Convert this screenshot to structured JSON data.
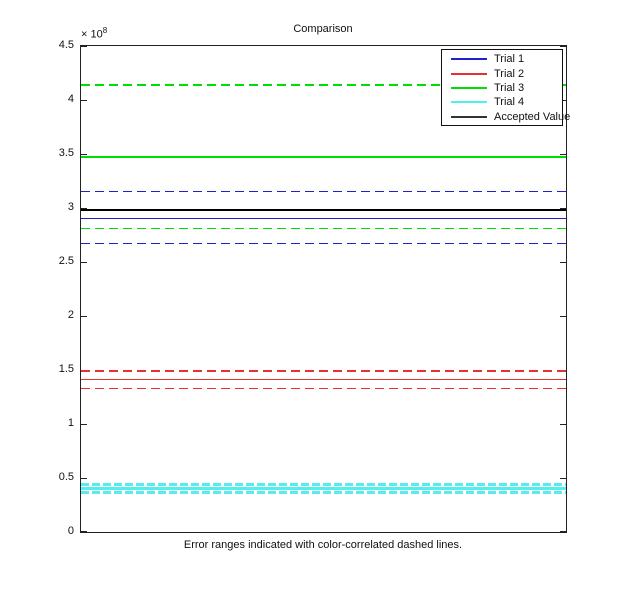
{
  "figure": {
    "title": "Comparison",
    "xlabel": "Error ranges indicated with color-correlated dashed lines.",
    "y_exponent": {
      "prefix": "× 10",
      "power": "8"
    },
    "y_ticks": [
      "0",
      "0.5",
      "1",
      "1.5",
      "2",
      "2.5",
      "3",
      "3.5",
      "4",
      "4.5"
    ]
  },
  "legend": {
    "entries": [
      {
        "label": "Trial 1",
        "color": "#2020CC"
      },
      {
        "label": "Trial 2",
        "color": "#E83030"
      },
      {
        "label": "Trial 3",
        "color": "#00DD00"
      },
      {
        "label": "Trial 4",
        "color": "#55EEEE"
      },
      {
        "label": "Accepted Value",
        "color": "#333333"
      }
    ]
  },
  "chart_data": {
    "type": "line",
    "title": "Comparison",
    "xlabel": "Error ranges indicated with color-correlated dashed lines.",
    "ylabel": "",
    "ylim": [
      0,
      450000000
    ],
    "y_tick_step": 50000000,
    "y_scale_note": "y axis in units of 1e8 (× 10^8)",
    "grid": false,
    "legend_position": "upper right",
    "legend_entries": [
      "Trial 1",
      "Trial 2",
      "Trial 3",
      "Trial 4",
      "Accepted Value"
    ],
    "series": [
      {
        "name": "Trial 1",
        "value": 290000000,
        "lower": 267000000,
        "upper": 315000000,
        "color": "#2020CC",
        "width": 1.4,
        "dash": [
          9,
          5
        ],
        "style": "solid value line, dashed error-range lines"
      },
      {
        "name": "Trial 2",
        "value": 141000000,
        "lower": 133000000,
        "upper": 149000000,
        "color": "#E83030",
        "width": 1.4,
        "dash": [
          9,
          5
        ],
        "style": "solid value line, dashed error-range lines"
      },
      {
        "name": "Trial 3",
        "value": 347000000,
        "lower": 281000000,
        "upper": 414000000,
        "color": "#00DD00",
        "width": 1.8,
        "dash": [
          9,
          5
        ],
        "style": "solid value line, dashed error-range lines"
      },
      {
        "name": "Trial 4",
        "value": 40500000,
        "lower": 37000000,
        "upper": 44000000,
        "color": "#55EEEE",
        "width": 3,
        "dash": [
          8,
          3
        ],
        "style": "thick solid value line, thick dashed error-range lines"
      },
      {
        "name": "Accepted Value",
        "value": 298000000,
        "lower": null,
        "upper": null,
        "color": "#000000",
        "width": 1.5,
        "dash": [
          9,
          5
        ],
        "style": "solid line only"
      }
    ]
  }
}
